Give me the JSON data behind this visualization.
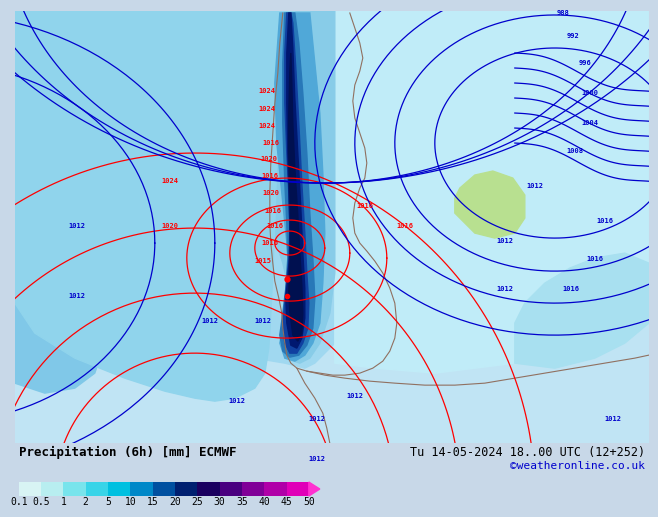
{
  "title_left": "Precipitation (6h) [mm] ECMWF",
  "title_right": "Tu 14-05-2024 18..00 UTC (12+252)",
  "credit": "©weatheronline.co.uk",
  "bg_color": "#c8d8e8",
  "bottom_bg": "#ffffff",
  "title_fontsize": 9,
  "credit_fontsize": 8,
  "label_fontsize": 7,
  "colorbar_seg_colors": [
    "#d8f4f4",
    "#b8eef0",
    "#78e4ec",
    "#38d4e8",
    "#00c0e0",
    "#0088c8",
    "#0050a0",
    "#002070",
    "#1a0060",
    "#4a0080",
    "#800098",
    "#b000a8",
    "#e000b8",
    "#ff30d0"
  ],
  "colorbar_tick_labels": [
    "0.1",
    "0.5",
    "1",
    "2",
    "5",
    "10",
    "15",
    "20",
    "25",
    "30",
    "35",
    "40",
    "45",
    "50"
  ],
  "colorbar_positions": [
    0.1,
    0.5,
    1,
    2,
    5,
    10,
    15,
    20,
    25,
    30,
    35,
    40,
    45,
    50
  ],
  "map_ocean_color": "#cce8f4",
  "map_light_precip": "#a8dff0",
  "map_mid_precip": "#70c8e8",
  "map_heavy_precip": "#3890c0",
  "map_very_heavy": "#0050a0",
  "map_land_color": "#d8cfc0",
  "map_greenish": "#c8e8a0"
}
